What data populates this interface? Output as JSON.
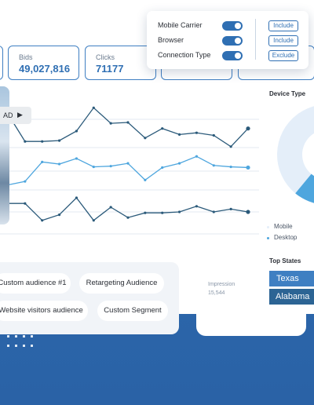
{
  "colors": {
    "accent": "#2f6fb3",
    "light_series": "#4ea6de",
    "dark_series": "#2b5a7a",
    "pie_light": "#e4eef9",
    "pie_accent": "#4ea6de"
  },
  "kpis": [
    {
      "label": "Bids",
      "value": "49,027,816"
    },
    {
      "label": "Clicks",
      "value": "71177"
    }
  ],
  "video": {
    "label": "AD",
    "play_icon": "▶",
    "icon": "play-icon"
  },
  "filters": {
    "rows": [
      {
        "label": "Mobile Carrier",
        "toggle": "on",
        "action": "Include"
      },
      {
        "label": "Browser",
        "toggle": "on",
        "action": "Include"
      },
      {
        "label": "Connection Type",
        "toggle": "on",
        "action": "Exclude"
      }
    ]
  },
  "chart_data": {
    "type": "line",
    "x": [
      1,
      2,
      3,
      4,
      5,
      6,
      7,
      8,
      9,
      10,
      11,
      12,
      13,
      14,
      15
    ],
    "ylim": [
      0,
      100
    ],
    "series": [
      {
        "values": [
          90,
          58,
          58,
          59,
          70,
          97,
          79,
          80,
          62,
          73,
          66,
          68,
          65,
          52,
          73
        ]
      },
      {
        "values": [
          14,
          19,
          47,
          44,
          52,
          40,
          41,
          45,
          21,
          39,
          45,
          55,
          42,
          40,
          39
        ]
      },
      {
        "values": [
          -51,
          -51,
          -69,
          -63,
          -45,
          -69,
          -55,
          -66,
          -61,
          -61,
          -60,
          -54,
          -60,
          -57,
          -60
        ]
      }
    ],
    "legend": [],
    "grid": true
  },
  "device": {
    "title": "Device Type",
    "legend": [
      "Mobile",
      "Desktop"
    ]
  },
  "states": {
    "title": "Top States",
    "items": [
      "Texas",
      "Alabama"
    ]
  },
  "audiences": [
    "Custom audience #1",
    "Retargeting Audience",
    "Website visitors audience",
    "Custom Segment"
  ],
  "impression": {
    "label": "Impression",
    "value": "15,544"
  }
}
